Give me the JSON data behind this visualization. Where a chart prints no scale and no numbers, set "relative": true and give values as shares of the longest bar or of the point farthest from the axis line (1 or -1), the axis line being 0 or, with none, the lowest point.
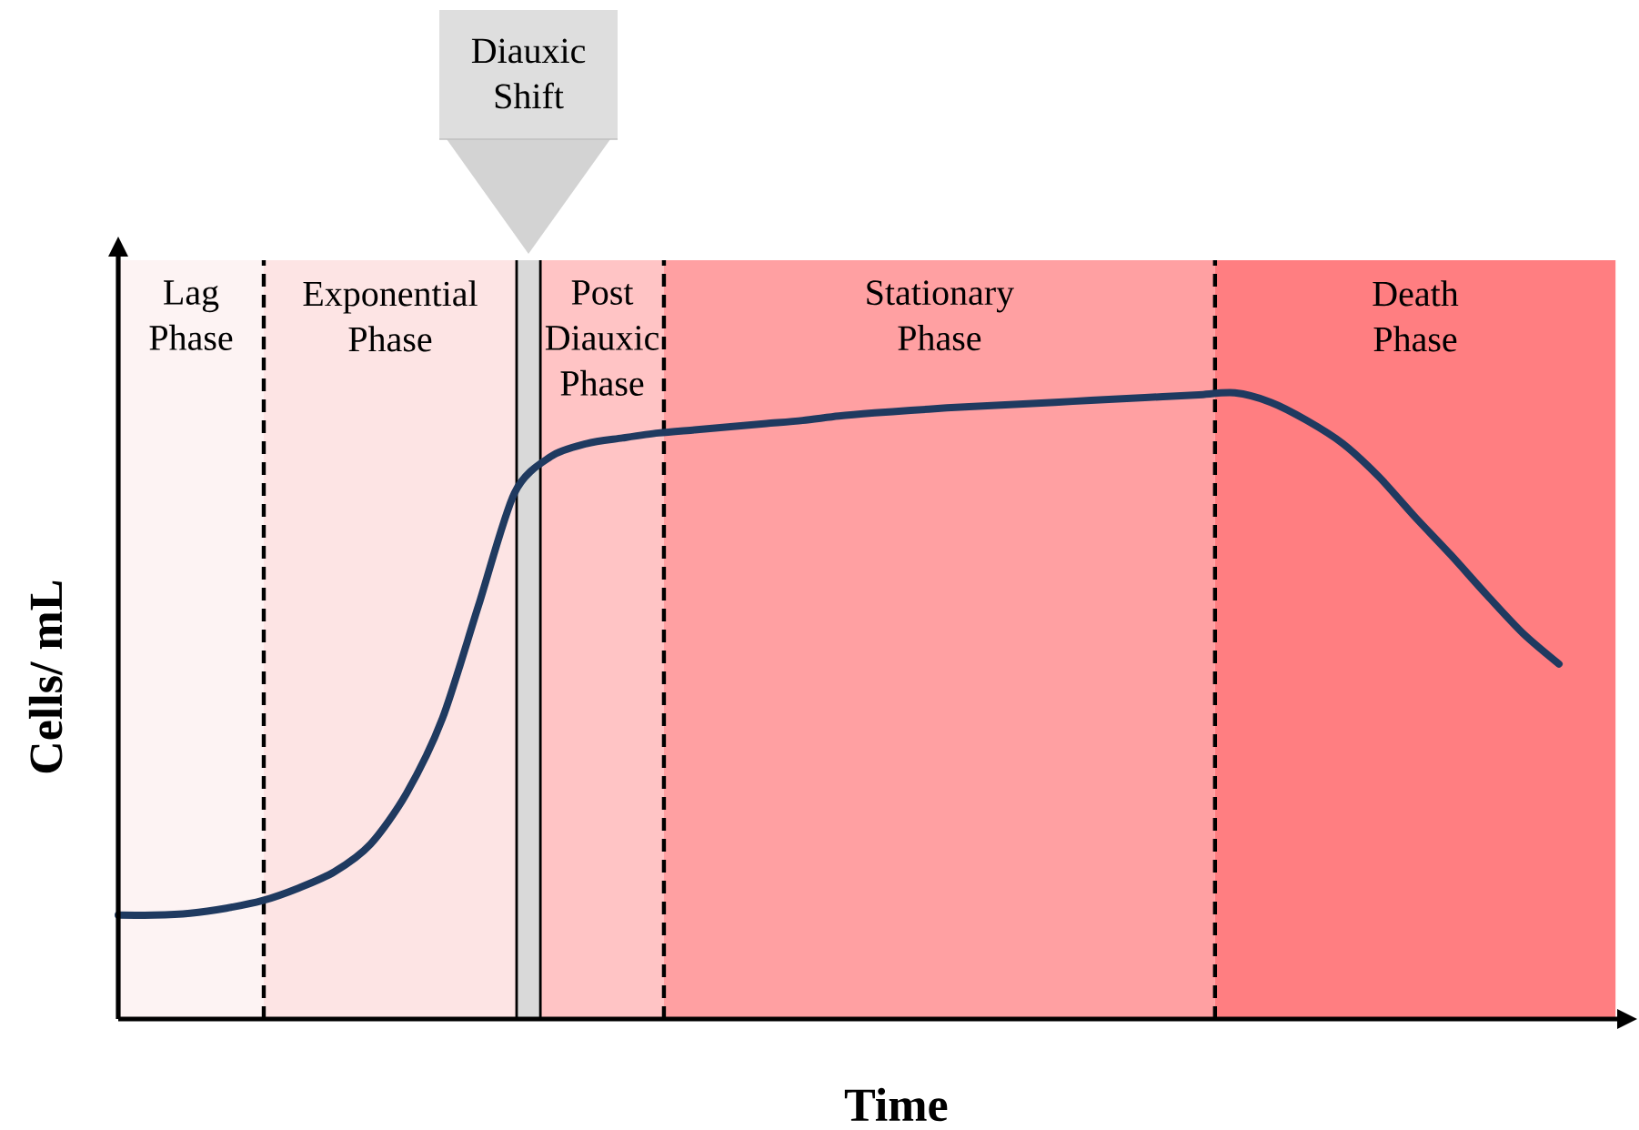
{
  "chart_data": {
    "type": "line",
    "xlabel": "Time",
    "ylabel": "Cells/ mL",
    "relative": true,
    "marker": "none",
    "categories": [
      null,
      null,
      null,
      null,
      null,
      null,
      null,
      null,
      null,
      null,
      null,
      null,
      null,
      null,
      null,
      null,
      null,
      null,
      null,
      null,
      null,
      null,
      null,
      null,
      null,
      null,
      null,
      null,
      null,
      null,
      null,
      null,
      null,
      null,
      null,
      null,
      null,
      null,
      null,
      null,
      null
    ],
    "series": [
      {
        "color": "#1f3a60",
        "values": [
          0.166,
          0.166,
          0.169,
          0.177,
          0.189,
          0.209,
          0.235,
          0.279,
          0.36,
          0.48,
          0.66,
          0.84,
          0.898,
          0.919,
          0.928,
          0.936,
          0.941,
          0.946,
          0.951,
          0.956,
          0.963,
          0.968,
          0.972,
          0.976,
          0.979,
          0.982,
          0.985,
          0.988,
          0.991,
          0.994,
          0.997,
          1.0,
          0.985,
          0.956,
          0.919,
          0.866,
          0.802,
          0.741,
          0.677,
          0.616,
          0.567
        ]
      }
    ],
    "annotations": [
      "Lag Phase",
      "Exponential Phase",
      "Diauxic Shift",
      "Post Diauxic Phase",
      "Stationary Phase",
      "Death Phase"
    ]
  }
}
